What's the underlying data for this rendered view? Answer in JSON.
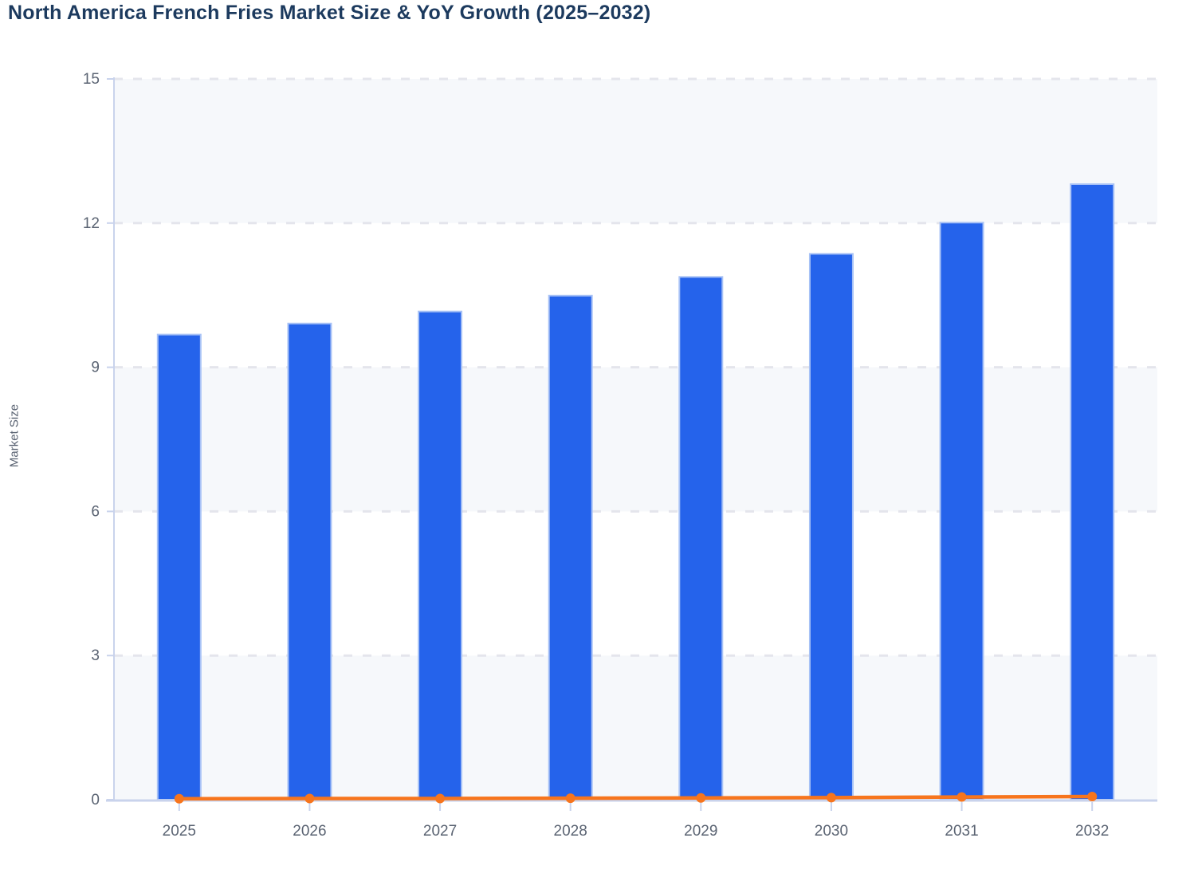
{
  "chart_data": {
    "type": "bar",
    "title": "North America French Fries Market Size & YoY Growth (2025–2032)",
    "title_color": "#1c3a5e",
    "xlabel": "",
    "ylabel": "Market Size",
    "categories": [
      "2025",
      "2026",
      "2027",
      "2028",
      "2029",
      "2030",
      "2031",
      "2032"
    ],
    "series": [
      {
        "name": "Market Size",
        "type": "bar",
        "color": "#2563eb",
        "border_color": "#a8c2f6",
        "values": [
          9.68,
          9.91,
          10.16,
          10.49,
          10.88,
          11.36,
          12.01,
          12.81
        ]
      },
      {
        "name": "YoY Growth",
        "type": "line",
        "color": "#f7751d",
        "marker": "circle",
        "values": [
          0.021,
          0.024,
          0.025,
          0.032,
          0.037,
          0.044,
          0.057,
          0.067
        ]
      }
    ],
    "ylim": [
      0,
      15
    ],
    "yticks": [
      0,
      3,
      6,
      9,
      12,
      15
    ],
    "grid": "horizontal-dashed",
    "grid_color": "#e4e5ec",
    "axis_color": "#c9d3ec",
    "tick_label_color": "#5a6372",
    "split_area_colors": [
      "#f6f8fb",
      "#ffffff"
    ],
    "legend_position": "none"
  }
}
